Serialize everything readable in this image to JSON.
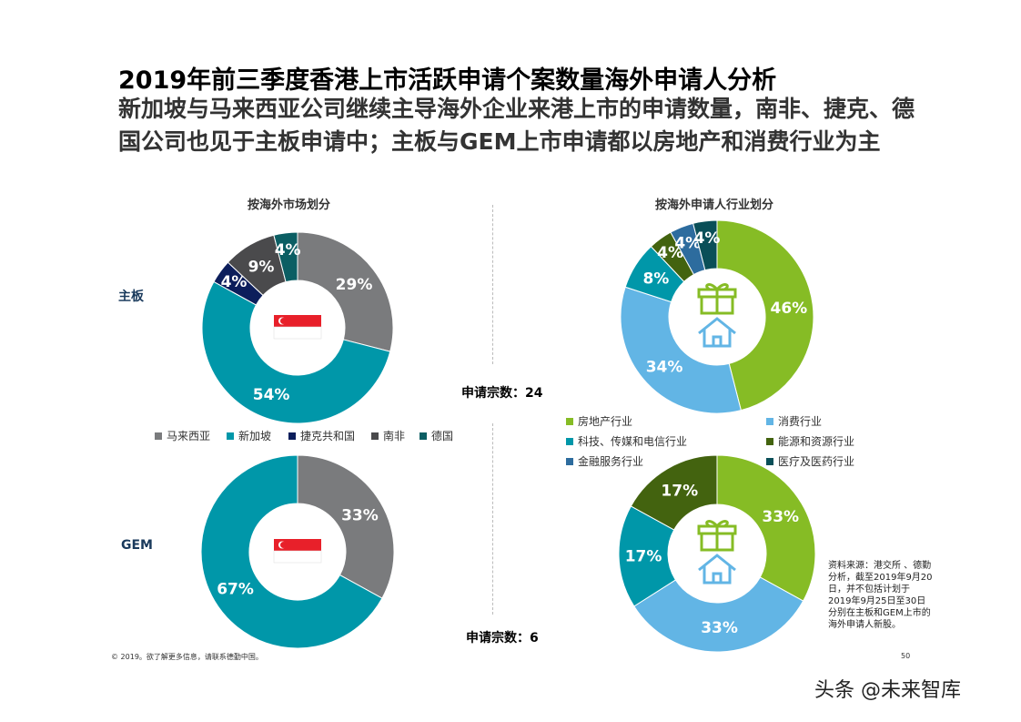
{
  "title": "2019年前三季度香港上市活跃申请个案数量海外申请人分析",
  "subtitle": "新加坡与马来西亚公司继续主导海外企业来港上市的申请数量，南非、捷克、德国公司也见于主板申请中；主板与GEM上市申请都以房地产和消费行业为主",
  "section_left": "按海外市场划分",
  "section_right": "按海外申请人行业划分",
  "row_main": "主板",
  "row_gem": "GEM",
  "count_main": "申请宗数：24",
  "count_gem": "申请宗数：6",
  "market_legend": [
    {
      "name": "马来西亚",
      "color": "#7a7b7d"
    },
    {
      "name": "新加坡",
      "color": "#0097a9"
    },
    {
      "name": "捷克共和国",
      "color": "#0c1e5b"
    },
    {
      "name": "南非",
      "color": "#4a4a4c"
    },
    {
      "name": "德国",
      "color": "#0b5e63"
    }
  ],
  "industry_legend": [
    {
      "name": "房地产行业",
      "color": "#86bc25"
    },
    {
      "name": "消费行业",
      "color": "#62b5e5"
    },
    {
      "name": "科技、传媒和电信行业",
      "color": "#0097a9"
    },
    {
      "name": "能源和资源行业",
      "color": "#43630f"
    },
    {
      "name": "金融服务行业",
      "color": "#2d6c9e"
    },
    {
      "name": "医疗及医药行业",
      "color": "#0a4f58"
    }
  ],
  "chart_data": [
    {
      "type": "pie",
      "donut": true,
      "group": "主板",
      "breakdown": "按海外市场划分",
      "categories": [
        "马来西亚",
        "新加坡",
        "捷克共和国",
        "南非",
        "德国"
      ],
      "values": [
        29,
        54,
        4,
        9,
        4
      ],
      "labels": [
        "29%",
        "54%",
        "4%",
        "9%",
        "4%"
      ],
      "center_icon": "singapore-flag"
    },
    {
      "type": "pie",
      "donut": true,
      "group": "主板",
      "breakdown": "按海外申请人行业划分",
      "categories": [
        "房地产行业",
        "消费行业",
        "科技、传媒和电信行业",
        "能源和资源行业",
        "金融服务行业",
        "医疗及医药行业"
      ],
      "values": [
        46,
        34,
        8,
        4,
        4,
        4
      ],
      "labels": [
        "46%",
        "34%",
        "8%",
        "4%",
        "4%",
        "4%"
      ],
      "center_icon": "gift-house"
    },
    {
      "type": "pie",
      "donut": true,
      "group": "GEM",
      "breakdown": "按海外市场划分",
      "categories": [
        "马来西亚",
        "新加坡"
      ],
      "values": [
        33,
        67
      ],
      "labels": [
        "33%",
        "67%"
      ],
      "center_icon": "singapore-flag"
    },
    {
      "type": "pie",
      "donut": true,
      "group": "GEM",
      "breakdown": "按海外申请人行业划分",
      "categories": [
        "房地产行业",
        "消费行业",
        "科技、传媒和电信行业",
        "能源和资源行业"
      ],
      "values": [
        33,
        33,
        17,
        17
      ],
      "labels": [
        "33%",
        "33%",
        "17%",
        "17%"
      ],
      "center_icon": "gift-house"
    }
  ],
  "source": "资料来源：港交所 、德勤分析，截至2019年9月20日，并不包括计划于2019年9月25日至30日分别在主板和GEM上市的海外申请人新股。",
  "footer": "© 2019。欲了解更多信息，请联系德勤中国。",
  "page_number": "50",
  "watermark": "头条 @未来智库"
}
